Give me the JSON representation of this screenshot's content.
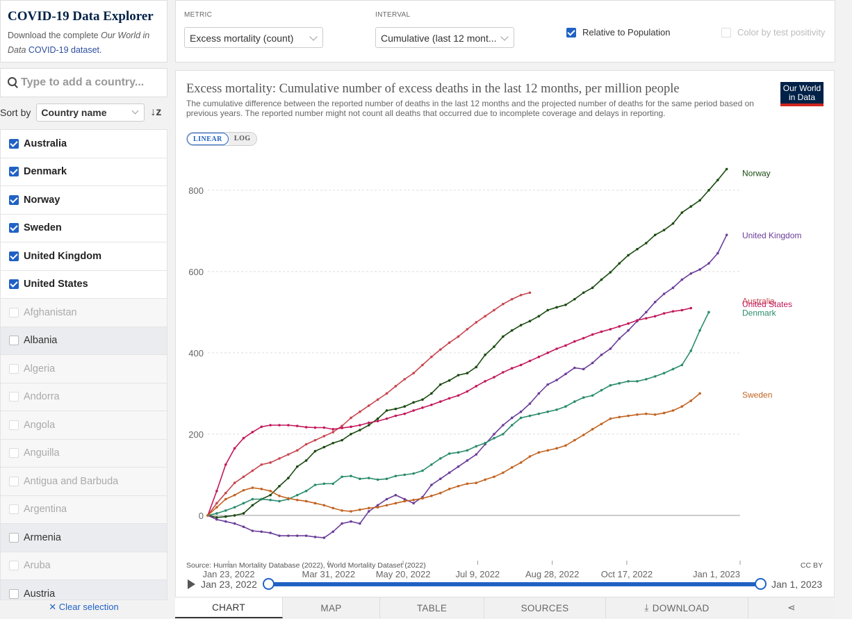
{
  "header": {
    "title": "COVID-19 Data Explorer",
    "desc_prefix": "Download the complete ",
    "desc_italic": "Our World in Data",
    "desc_link": " COVID-19 dataset."
  },
  "controls": {
    "metric_label": "METRIC",
    "metric_value": "Excess mortality (count)",
    "interval_label": "INTERVAL",
    "interval_value": "Cumulative (last 12 mont...",
    "relative_label": "Relative to Population",
    "positivity_label": "Color by test positivity"
  },
  "sidebar": {
    "search_placeholder": "Type to add a country...",
    "sort_label": "Sort by",
    "sort_value": "Country name",
    "clear_label": "Clear selection",
    "countries": [
      {
        "name": "Australia",
        "state": "sel"
      },
      {
        "name": "Denmark",
        "state": "sel"
      },
      {
        "name": "Norway",
        "state": "sel"
      },
      {
        "name": "Sweden",
        "state": "sel"
      },
      {
        "name": "United Kingdom",
        "state": "sel"
      },
      {
        "name": "United States",
        "state": "sel"
      },
      {
        "name": "Afghanistan",
        "state": "unsel"
      },
      {
        "name": "Albania",
        "state": "avail"
      },
      {
        "name": "Algeria",
        "state": "unsel"
      },
      {
        "name": "Andorra",
        "state": "unsel"
      },
      {
        "name": "Angola",
        "state": "unsel"
      },
      {
        "name": "Anguilla",
        "state": "unsel"
      },
      {
        "name": "Antigua and Barbuda",
        "state": "unsel"
      },
      {
        "name": "Argentina",
        "state": "unsel"
      },
      {
        "name": "Armenia",
        "state": "avail"
      },
      {
        "name": "Aruba",
        "state": "unsel"
      },
      {
        "name": "Austria",
        "state": "avail"
      }
    ]
  },
  "chart_meta": {
    "logo": "Our World in Data",
    "linear": "LINEAR",
    "log": "LOG",
    "source": "Source: Human Mortality Database (2022), World Mortality Dataset (2022)",
    "license": "CC BY"
  },
  "timeline": {
    "start": "Jan 23, 2022",
    "end": "Jan 1, 2023"
  },
  "tabs": [
    "CHART",
    "MAP",
    "TABLE",
    "SOURCES",
    "DOWNLOAD",
    ""
  ],
  "chart_data": {
    "type": "line",
    "title": "Excess mortality: Cumulative number of excess deaths in the last 12 months, per million people",
    "subtitle": "The cumulative difference between the reported number of deaths in the last 12 months and the projected number of deaths for the same period based on previous years. The reported number might not count all deaths that occurred due to incomplete coverage and delays in reporting.",
    "x_axis": {
      "type": "date",
      "min": "2022-01-09",
      "max": "2023-01-01",
      "ticks": [
        "Jan 23, 2022",
        "Mar 31, 2022",
        "May 20, 2022",
        "Jul 9, 2022",
        "Aug 28, 2022",
        "Oct 17, 2022",
        "Jan 1, 2023"
      ]
    },
    "y_axis": {
      "min": -60,
      "max": 880,
      "ticks": [
        0,
        200,
        400,
        600,
        800
      ]
    },
    "grid": true,
    "series": [
      {
        "name": "Norway",
        "color": "#1a4a10",
        "week_start": "2022-01-09",
        "values": [
          0,
          -5,
          -3,
          0,
          5,
          25,
          40,
          50,
          72,
          92,
          120,
          135,
          158,
          168,
          178,
          185,
          200,
          210,
          222,
          238,
          258,
          262,
          268,
          278,
          285,
          300,
          322,
          332,
          345,
          350,
          365,
          395,
          415,
          440,
          455,
          468,
          478,
          490,
          505,
          512,
          518,
          532,
          548,
          560,
          580,
          598,
          620,
          640,
          655,
          670,
          690,
          702,
          718,
          745,
          760,
          775,
          800,
          825,
          852
        ]
      },
      {
        "name": "United Kingdom",
        "color": "#6b3d9a",
        "week_start": "2022-01-09",
        "values": [
          0,
          -10,
          -15,
          -20,
          -28,
          -38,
          -40,
          -43,
          -50,
          -50,
          -50,
          -50,
          -53,
          -55,
          -40,
          -20,
          -15,
          -20,
          10,
          25,
          40,
          50,
          40,
          30,
          45,
          75,
          90,
          105,
          120,
          135,
          150,
          175,
          200,
          222,
          240,
          255,
          275,
          300,
          322,
          333,
          348,
          363,
          360,
          375,
          395,
          410,
          435,
          455,
          478,
          500,
          525,
          545,
          560,
          580,
          595,
          605,
          620,
          645,
          690
        ]
      },
      {
        "name": "Australia",
        "color": "#c8464f",
        "week_start": "2022-01-09",
        "values": [
          0,
          30,
          55,
          80,
          95,
          110,
          125,
          130,
          140,
          150,
          160,
          175,
          185,
          195,
          205,
          220,
          240,
          255,
          270,
          285,
          300,
          318,
          335,
          350,
          370,
          390,
          408,
          425,
          440,
          458,
          475,
          490,
          505,
          520,
          532,
          542,
          548
        ]
      },
      {
        "name": "United States",
        "color": "#c2185b",
        "week_start": "2022-01-09",
        "values": [
          0,
          60,
          125,
          165,
          190,
          205,
          218,
          222,
          222,
          222,
          220,
          217,
          216,
          216,
          212,
          215,
          218,
          222,
          228,
          232,
          238,
          245,
          250,
          258,
          265,
          272,
          280,
          288,
          295,
          305,
          318,
          330,
          340,
          352,
          362,
          370,
          380,
          390,
          400,
          410,
          418,
          428,
          436,
          445,
          452,
          458,
          465,
          472,
          480,
          485,
          490,
          497,
          502,
          505,
          510
        ]
      },
      {
        "name": "Denmark",
        "color": "#2a8c6c",
        "week_start": "2022-01-09",
        "values": [
          0,
          5,
          12,
          20,
          30,
          40,
          40,
          38,
          35,
          40,
          50,
          60,
          75,
          78,
          78,
          95,
          97,
          90,
          92,
          88,
          90,
          97,
          100,
          103,
          110,
          125,
          140,
          152,
          155,
          160,
          170,
          178,
          190,
          200,
          222,
          240,
          245,
          250,
          255,
          260,
          268,
          280,
          290,
          295,
          308,
          320,
          325,
          330,
          330,
          335,
          342,
          350,
          360,
          370,
          405,
          455,
          500
        ]
      },
      {
        "name": "Sweden",
        "color": "#c26321",
        "week_start": "2022-01-09",
        "values": [
          0,
          20,
          40,
          50,
          62,
          68,
          65,
          60,
          48,
          42,
          38,
          35,
          30,
          25,
          18,
          12,
          10,
          14,
          18,
          20,
          25,
          30,
          35,
          38,
          42,
          48,
          55,
          65,
          72,
          78,
          80,
          88,
          95,
          105,
          118,
          130,
          145,
          155,
          160,
          165,
          172,
          185,
          198,
          212,
          225,
          238,
          242,
          245,
          248,
          250,
          248,
          252,
          258,
          268,
          282,
          300
        ]
      }
    ]
  }
}
